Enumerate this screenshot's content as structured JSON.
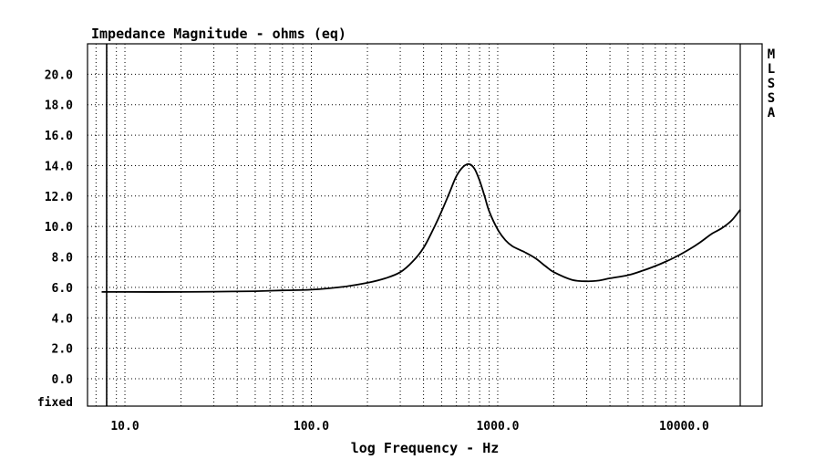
{
  "chart_data": {
    "type": "line",
    "title": "Impedance Magnitude - ohms (eq)",
    "xlabel": "log Frequency - Hz",
    "ylabel": "",
    "x_scale": "log",
    "xlim": [
      6.3,
      20000
    ],
    "ylim": [
      -1.8,
      22
    ],
    "y_ticks": [
      0,
      2,
      4,
      6,
      8,
      10,
      12,
      14,
      16,
      18,
      20
    ],
    "y_tick_labels": [
      "0.0",
      "2.0",
      "4.0",
      "6.0",
      "8.0",
      "10.0",
      "12.0",
      "14.0",
      "16.0",
      "18.0",
      "20.0"
    ],
    "y_bottom_label": "fixed",
    "x_ticks": [
      10,
      100,
      1000,
      10000
    ],
    "x_tick_labels": [
      "10.0",
      "100.0",
      "1000.0",
      "10000.0"
    ],
    "side_label": [
      "M",
      "L",
      "S",
      "S",
      "A"
    ],
    "grid": true,
    "series": [
      {
        "x": [
          7.5,
          10,
          20,
          30,
          50,
          70,
          100,
          150,
          200,
          250,
          300,
          350,
          400,
          450,
          500,
          550,
          600,
          650,
          700,
          750,
          800,
          850,
          900,
          1000,
          1100,
          1200,
          1400,
          1600,
          1800,
          2000,
          2500,
          3000,
          3500,
          4000,
          5000,
          6000,
          7000,
          8000,
          9000,
          10000,
          12000,
          14000,
          16000,
          18000,
          20000
        ],
        "values": [
          5.7,
          5.7,
          5.7,
          5.72,
          5.75,
          5.8,
          5.85,
          6.05,
          6.3,
          6.6,
          7.0,
          7.7,
          8.6,
          9.8,
          11.0,
          12.2,
          13.3,
          13.9,
          14.1,
          13.8,
          13.0,
          12.0,
          11.0,
          9.8,
          9.1,
          8.7,
          8.3,
          7.9,
          7.4,
          7.0,
          6.5,
          6.4,
          6.45,
          6.6,
          6.8,
          7.1,
          7.4,
          7.7,
          8.0,
          8.3,
          8.9,
          9.5,
          9.9,
          10.4,
          11.1
        ]
      }
    ]
  }
}
